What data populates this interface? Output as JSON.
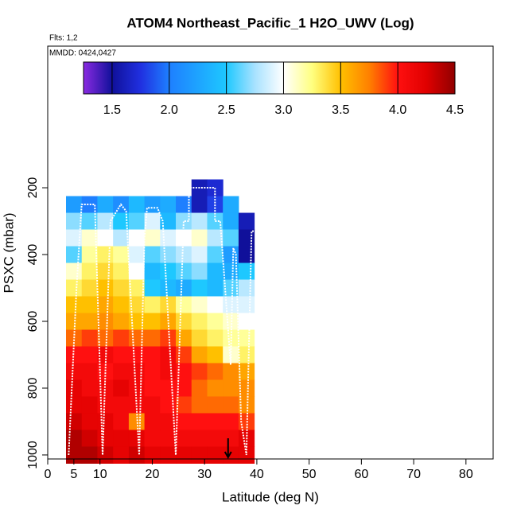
{
  "chart_data": {
    "type": "heatmap",
    "title": "ATOM4 Northeast_Pacific_1 H2O_UWV (Log)",
    "annotations": [
      "Flts: 1,2",
      "MMDD: 0424,0427"
    ],
    "xlabel": "Latitude (deg N)",
    "ylabel": "PSXC (mbar)",
    "xlim": [
      0,
      85.2
    ],
    "xticks": [
      0,
      5,
      10,
      20,
      30,
      40,
      50,
      60,
      70,
      80
    ],
    "ylim": [
      1012,
      -224
    ],
    "yticks": [
      200,
      400,
      600,
      800,
      1000
    ],
    "x": [
      5,
      8,
      11,
      14,
      17,
      20,
      23,
      26,
      29,
      32,
      35,
      38
    ],
    "y": [
      200,
      250,
      300,
      350,
      400,
      450,
      500,
      550,
      600,
      650,
      700,
      750,
      800,
      850,
      900,
      950,
      1000
    ],
    "z": [
      [
        null,
        null,
        null,
        null,
        null,
        null,
        null,
        null,
        1.6,
        1.7,
        null,
        null
      ],
      [
        2.2,
        2.0,
        2.3,
        2.1,
        2.4,
        2.2,
        2.3,
        2.0,
        1.6,
        1.8,
        2.3,
        null
      ],
      [
        2.7,
        2.6,
        2.8,
        2.5,
        2.6,
        2.9,
        2.4,
        2.7,
        2.8,
        2.6,
        2.3,
        1.6
      ],
      [
        2.9,
        3.1,
        3.0,
        2.8,
        3.0,
        3.1,
        2.9,
        3.0,
        3.1,
        2.8,
        2.6,
        1.5
      ],
      [
        2.6,
        3.2,
        3.3,
        3.2,
        2.9,
        2.6,
        2.7,
        2.8,
        2.9,
        2.6,
        2.2,
        1.5
      ],
      [
        3.1,
        3.3,
        3.4,
        3.3,
        3.0,
        2.4,
        2.5,
        2.6,
        2.7,
        2.4,
        2.3,
        2.5
      ],
      [
        3.3,
        3.4,
        3.5,
        3.4,
        3.3,
        2.5,
        2.4,
        2.3,
        2.5,
        2.4,
        2.6,
        2.8
      ],
      [
        3.5,
        3.5,
        3.6,
        3.5,
        3.4,
        3.3,
        3.4,
        3.2,
        3.1,
        3.0,
        2.9,
        2.9
      ],
      [
        3.6,
        3.6,
        3.7,
        3.6,
        3.5,
        3.5,
        3.6,
        3.4,
        3.3,
        3.2,
        3.1,
        3.0
      ],
      [
        3.8,
        3.9,
        3.8,
        3.9,
        3.8,
        3.8,
        3.9,
        3.6,
        3.4,
        3.3,
        3.2,
        3.2
      ],
      [
        4.0,
        4.0,
        4.1,
        4.0,
        4.0,
        4.0,
        4.1,
        3.9,
        3.6,
        3.5,
        3.1,
        3.3
      ],
      [
        4.1,
        4.1,
        4.0,
        4.1,
        4.1,
        4.0,
        4.1,
        4.0,
        3.9,
        3.8,
        3.7,
        3.6
      ],
      [
        4.2,
        4.1,
        4.1,
        4.2,
        4.1,
        4.0,
        4.0,
        4.0,
        3.8,
        3.7,
        3.7,
        3.7
      ],
      [
        4.2,
        4.2,
        4.1,
        4.1,
        4.1,
        4.1,
        4.0,
        3.9,
        3.8,
        3.8,
        3.8,
        3.7
      ],
      [
        4.3,
        4.2,
        4.2,
        4.1,
        3.7,
        4.1,
        4.1,
        4.0,
        4.0,
        4.0,
        4.0,
        3.9
      ],
      [
        4.4,
        4.3,
        4.2,
        4.2,
        4.2,
        4.1,
        4.1,
        4.1,
        4.1,
        4.1,
        4.1,
        4.2
      ],
      [
        4.4,
        4.4,
        4.3,
        4.2,
        4.3,
        4.2,
        4.2,
        4.2,
        4.2,
        4.2,
        4.2,
        4.2
      ]
    ],
    "colorbar": {
      "lim": [
        1.25,
        4.5
      ],
      "ticks": [
        1.5,
        {
          "value": 2,
          "label": "2.0"
        },
        2.5,
        {
          "value": 3,
          "label": "3.0"
        },
        3.5,
        {
          "value": 4,
          "label": "4.0"
        },
        4.5
      ],
      "colorscale": [
        [
          1.25,
          "#8a2be2"
        ],
        [
          1.5,
          "#10109a"
        ],
        [
          1.75,
          "#2030e0"
        ],
        [
          2.0,
          "#1e7fff"
        ],
        [
          2.5,
          "#1ec8ff"
        ],
        [
          2.75,
          "#a8e2ff"
        ],
        [
          3.0,
          "#ffffff"
        ],
        [
          3.25,
          "#ffff80"
        ],
        [
          3.5,
          "#ffc000"
        ],
        [
          3.75,
          "#ff8000"
        ],
        [
          4.0,
          "#ff1010"
        ],
        [
          4.25,
          "#e00000"
        ],
        [
          4.5,
          "#900000"
        ]
      ]
    },
    "track": {
      "color": "#ffffff",
      "x": [
        4,
        5.5,
        6.5,
        9,
        10.5,
        12,
        14,
        15,
        17.5,
        18.5,
        19,
        21,
        22,
        24.5,
        26,
        27,
        27,
        32,
        32,
        33,
        35,
        35.5,
        36,
        37,
        38,
        39,
        40
      ],
      "y": [
        1000,
        500,
        250,
        250,
        1000,
        300,
        250,
        270,
        1000,
        350,
        260,
        260,
        300,
        1000,
        300,
        300,
        200,
        200,
        300,
        300,
        730,
        380,
        400,
        900,
        1000,
        330,
        330
      ]
    },
    "marker": {
      "x": 34.5,
      "color": "#000000"
    }
  }
}
